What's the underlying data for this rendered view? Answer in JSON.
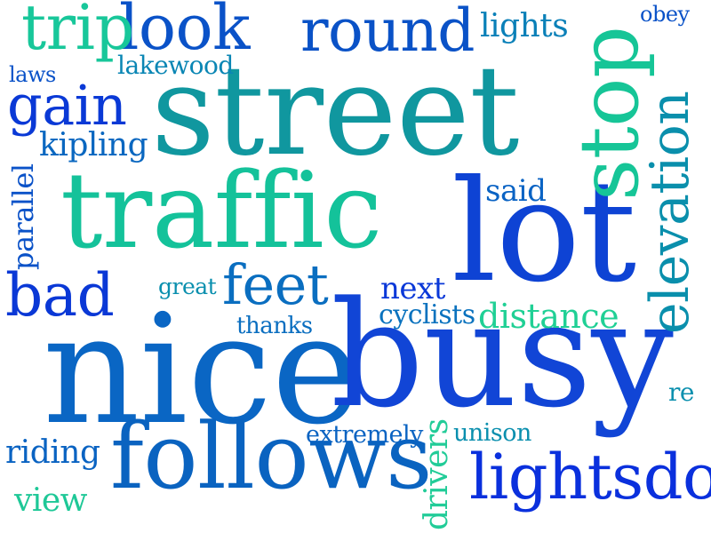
{
  "words": [
    {
      "text": "nice",
      "color": "#0a66c4"
    },
    {
      "text": "busy",
      "color": "#1145d6"
    },
    {
      "text": "street",
      "color": "#10979f"
    },
    {
      "text": "traffic",
      "color": "#14c29a"
    },
    {
      "text": "lot",
      "color": "#0e43d4"
    },
    {
      "text": "follows",
      "color": "#0a63c0"
    },
    {
      "text": "stop",
      "color": "#16c597"
    },
    {
      "text": "round",
      "color": "#0a52c7"
    },
    {
      "text": "lightsdo",
      "color": "#0a30dd"
    },
    {
      "text": "elevation",
      "color": "#0a8fac"
    },
    {
      "text": "look",
      "color": "#0a52c8"
    },
    {
      "text": "trip",
      "color": "#18c79a"
    },
    {
      "text": "gain",
      "color": "#0a39d6"
    },
    {
      "text": "feet",
      "color": "#0a6ec0"
    },
    {
      "text": "bad",
      "color": "#0a38d6"
    },
    {
      "text": "distance",
      "color": "#20d095"
    },
    {
      "text": "drivers",
      "color": "#22cc98"
    },
    {
      "text": "parallel",
      "color": "#0a52c8"
    },
    {
      "text": "kipling",
      "color": "#0a67c0"
    },
    {
      "text": "lights",
      "color": "#0a80b8"
    },
    {
      "text": "next",
      "color": "#0a38d8"
    },
    {
      "text": "cyclists",
      "color": "#0a72be"
    },
    {
      "text": "said",
      "color": "#0a63c4"
    },
    {
      "text": "lakewood",
      "color": "#0a86b4"
    },
    {
      "text": "riding",
      "color": "#0a63c2"
    },
    {
      "text": "view",
      "color": "#1ec897"
    },
    {
      "text": "extremely",
      "color": "#0a63c2"
    },
    {
      "text": "unison",
      "color": "#0a8fae"
    },
    {
      "text": "thanks",
      "color": "#0a6ec0"
    },
    {
      "text": "great",
      "color": "#0a8fae"
    },
    {
      "text": "laws",
      "color": "#0a52c8"
    },
    {
      "text": "obey",
      "color": "#0a52c8"
    },
    {
      "text": "re",
      "color": "#0a8fae"
    }
  ]
}
